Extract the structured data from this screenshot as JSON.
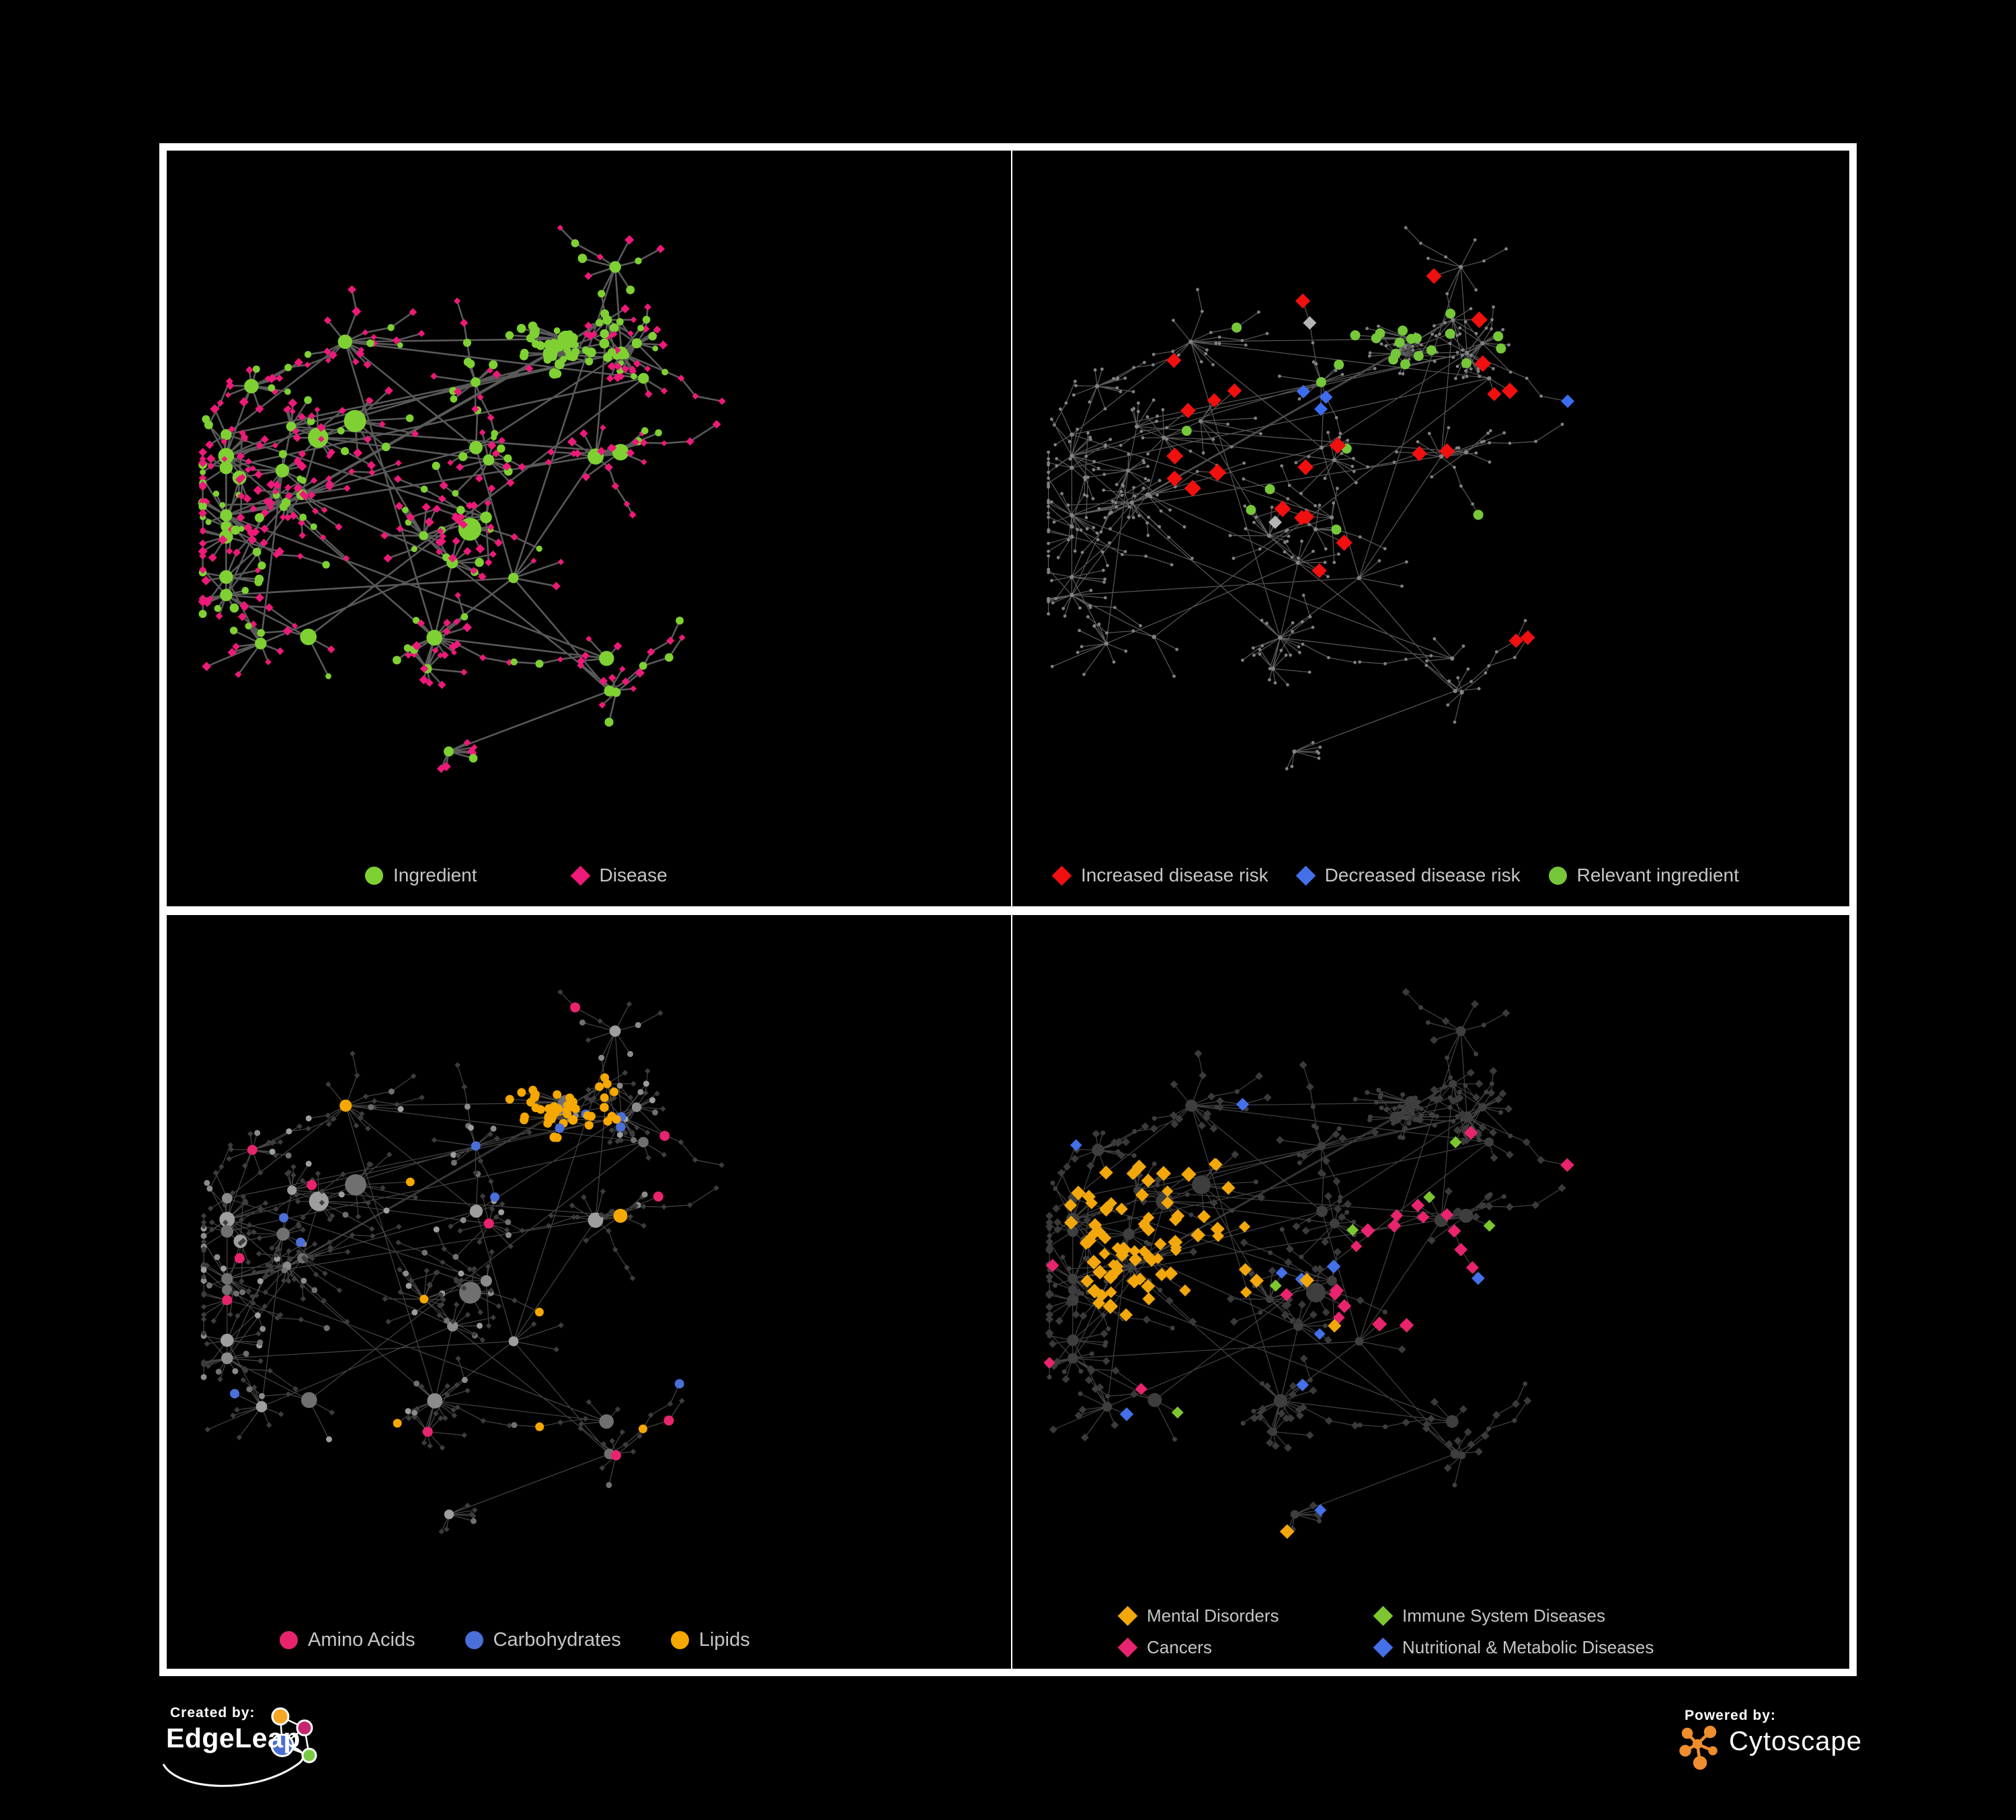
{
  "figure": {
    "background": "#000000",
    "frame_color": "#ffffff"
  },
  "panels": [
    {
      "name": "ingredient-disease-network",
      "legend": {
        "rows": [
          [
            {
              "label": "Ingredient",
              "shape": "circle",
              "color": "#7FD133"
            },
            {
              "label": "Disease",
              "shape": "diamond",
              "color": "#EC1A78"
            }
          ]
        ]
      }
    },
    {
      "name": "disease-risk-network",
      "legend": {
        "rows": [
          [
            {
              "label": "Increased disease risk",
              "shape": "diamond",
              "color": "#F01010"
            },
            {
              "label": "Decreased disease risk",
              "shape": "diamond",
              "color": "#4470E8"
            },
            {
              "label": "Relevant ingredient",
              "shape": "circle",
              "color": "#76C739"
            }
          ]
        ]
      }
    },
    {
      "name": "nutrient-class-network",
      "legend": {
        "rows": [
          [
            {
              "label": "Amino Acids",
              "shape": "circle",
              "color": "#E8246E"
            },
            {
              "label": "Carbohydrates",
              "shape": "circle",
              "color": "#4A6FD8"
            },
            {
              "label": "Lipids",
              "shape": "circle",
              "color": "#F5A800"
            }
          ]
        ]
      }
    },
    {
      "name": "disease-class-network",
      "legend": {
        "rows": [
          [
            {
              "label": "Mental Disorders",
              "shape": "diamond",
              "color": "#F2A70C"
            },
            {
              "label": "Immune System Diseases",
              "shape": "diamond",
              "color": "#7DC62F"
            }
          ],
          [
            {
              "label": "Cancers",
              "shape": "diamond",
              "color": "#E8246E"
            },
            {
              "label": "Nutritional & Metabolic Diseases",
              "shape": "diamond",
              "color": "#4470E8"
            }
          ]
        ]
      }
    }
  ],
  "footer": {
    "created_by_label": "Created by:",
    "created_by_brand": "EdgeLeap",
    "powered_by_label": "Powered by:",
    "powered_by_brand": "Cytoscape",
    "edgeleap_colors": {
      "orange": "#F5A623",
      "magenta": "#C9256E",
      "blue": "#4A6FD4",
      "green": "#7AC943"
    },
    "cytoscape_orange": "#EE8E2E"
  },
  "network_style": {
    "seed": 11,
    "hubs": 40,
    "maxLeaves": 26,
    "diseaseFraction": 0.74,
    "panel1": {
      "edge": "#696969",
      "edgeWidth": 2.6,
      "edgeOpacity": 0.85,
      "ingredient": "#7FD133",
      "disease": "#EC1A78"
    },
    "panel2": {
      "edge": "#646464",
      "edgeWidth": 1.2,
      "edgeOpacity": 0.9,
      "base": "#828282",
      "red": "#F01010",
      "blue": "#3D6DEF",
      "gray": "#B5B5B5",
      "green": "#76C739"
    },
    "panel3": {
      "edge": "#5E5E5E",
      "edgeWidth": 1.2,
      "edgeOpacity": 0.75,
      "diamond": "#3D3D3D",
      "circle_grays": [
        "#9E9E9E",
        "#8B8B8B",
        "#707070"
      ],
      "pink": "#E8246E",
      "blue": "#4A6FD8",
      "orange": "#F5A800"
    },
    "panel4": {
      "edge": "#5A5A5A",
      "edgeWidth": 1.2,
      "edgeOpacity": 0.75,
      "diamond": "#3A3A3A",
      "circle": "#3E3E3E",
      "orange": "#F2A70C",
      "pink": "#E8246E",
      "blue": "#4470E8",
      "green": "#7DC62F"
    }
  }
}
